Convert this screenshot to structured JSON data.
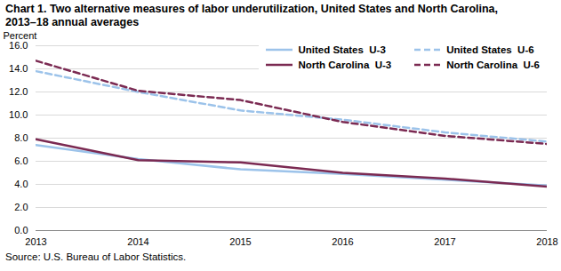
{
  "chart_data": {
    "type": "line",
    "title": "Chart 1. Two alternative measures of labor underutilization, United States and North Carolina, 2013–18 annual averages",
    "y_label": "Percent",
    "source": "Source: U.S. Bureau of Labor Statistics.",
    "x": [
      2013,
      2014,
      2015,
      2016,
      2017,
      2018
    ],
    "xlim": [
      2013,
      2018
    ],
    "xticks": [
      2013,
      2014,
      2015,
      2016,
      2017,
      2018
    ],
    "ylim": [
      0,
      16
    ],
    "yticks": [
      {
        "value": 0,
        "label": "0.0"
      },
      {
        "value": 2,
        "label": "2.0"
      },
      {
        "value": 4,
        "label": "4.0"
      },
      {
        "value": 6,
        "label": "6.0"
      },
      {
        "value": 8,
        "label": "8.0"
      },
      {
        "value": 10,
        "label": "10.0"
      },
      {
        "value": 12,
        "label": "12.0"
      },
      {
        "value": 14,
        "label": "14.0"
      },
      {
        "value": 16,
        "label": "16.0"
      }
    ],
    "grid": true,
    "legend": "top-right",
    "series": [
      {
        "name": "United States  U-3",
        "color": "#9cc3ea",
        "line_style": "solid",
        "values": [
          7.4,
          6.2,
          5.3,
          4.9,
          4.4,
          3.9
        ]
      },
      {
        "name": "United States  U-6",
        "color": "#9cc3ea",
        "line_style": "dashed",
        "values": [
          13.8,
          12.0,
          10.4,
          9.6,
          8.5,
          7.7
        ]
      },
      {
        "name": "North Carolina  U-3",
        "color": "#7b2a52",
        "line_style": "solid",
        "values": [
          7.9,
          6.1,
          5.9,
          5.0,
          4.5,
          3.8
        ]
      },
      {
        "name": "North Carolina  U-6",
        "color": "#7b2a52",
        "line_style": "dashed",
        "values": [
          14.7,
          12.1,
          11.3,
          9.4,
          8.2,
          7.5
        ]
      }
    ]
  }
}
